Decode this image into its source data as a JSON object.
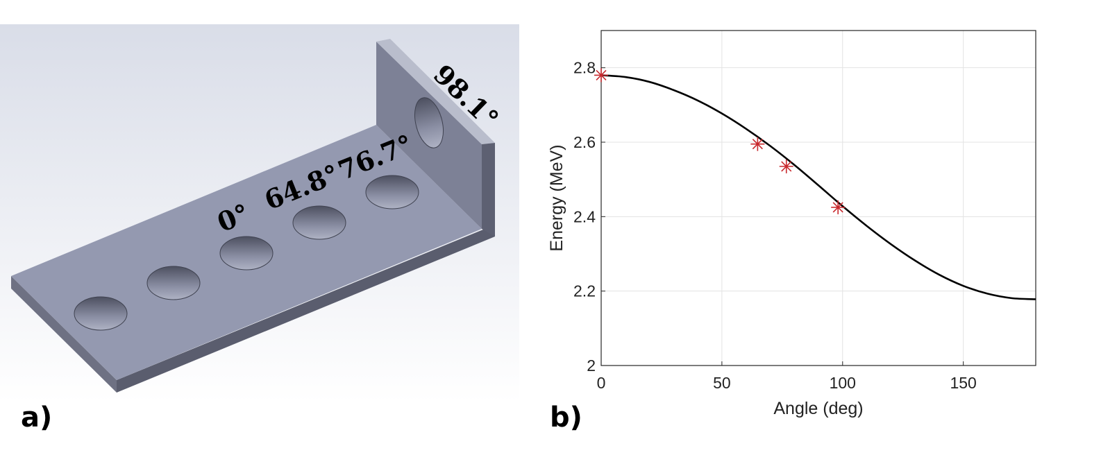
{
  "panel_a": {
    "label": "a)",
    "angle_labels": [
      "0°",
      "64.8°",
      "76.7°",
      "98.1°"
    ],
    "colors": {
      "plate_top": "#9499b0",
      "plate_front": "#5a5d6e",
      "wall_face": "#7d8196",
      "background_top": "#d9dde8",
      "background_bottom": "#ffffff"
    }
  },
  "panel_b": {
    "label": "b)"
  },
  "chart_data": {
    "type": "line",
    "title": "",
    "xlabel": "Angle (deg)",
    "ylabel": "Energy (MeV)",
    "xlim": [
      0,
      180
    ],
    "ylim": [
      2.0,
      2.9
    ],
    "x_ticks": [
      0,
      50,
      100,
      150
    ],
    "x_tick_labels": [
      "0",
      "50",
      "100",
      "150"
    ],
    "y_ticks": [
      2.0,
      2.2,
      2.4,
      2.6,
      2.8
    ],
    "y_tick_labels": [
      "2",
      "2.2",
      "2.4",
      "2.6",
      "2.8"
    ],
    "grid": true,
    "series": [
      {
        "kind": "line",
        "color": "#000000",
        "x": [
          0,
          10,
          20,
          30,
          40,
          50,
          60,
          70,
          80,
          90,
          100,
          110,
          120,
          130,
          140,
          150,
          160,
          170,
          180
        ],
        "values": [
          2.78,
          2.775,
          2.762,
          2.74,
          2.712,
          2.677,
          2.636,
          2.59,
          2.539,
          2.484,
          2.428,
          2.375,
          2.326,
          2.282,
          2.244,
          2.214,
          2.193,
          2.181,
          2.178
        ]
      },
      {
        "kind": "markers",
        "marker": "asterisk",
        "color": "#c8282d",
        "x": [
          0,
          64.8,
          76.7,
          98.1
        ],
        "values": [
          2.78,
          2.595,
          2.535,
          2.425
        ]
      }
    ]
  }
}
